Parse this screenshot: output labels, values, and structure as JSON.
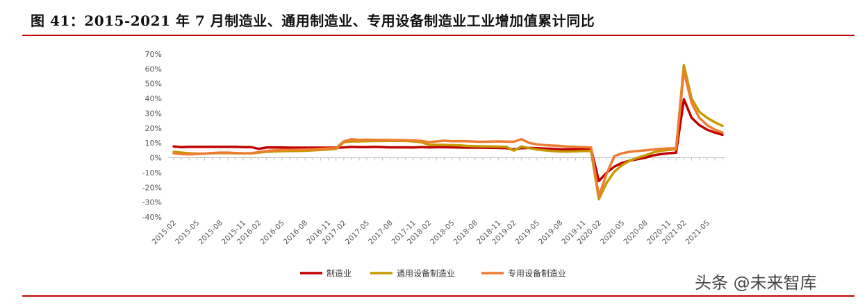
{
  "title": "图 41：2015-2021 年 7 月制造业、通用制造业、专用设备制造业工业增加值累计同比",
  "watermark": "头条 @未来智库",
  "chart_data": {
    "type": "line",
    "ylim": [
      -40,
      70
    ],
    "yticks": [
      "70%",
      "60%",
      "50%",
      "40%",
      "30%",
      "20%",
      "10%",
      "0%",
      "-10%",
      "-20%",
      "-30%",
      "-40%"
    ],
    "ytick_values": [
      70,
      60,
      50,
      40,
      30,
      20,
      10,
      0,
      -10,
      -20,
      -30,
      -40
    ],
    "x": [
      "2015-02",
      "2015-03",
      "2015-04",
      "2015-05",
      "2015-06",
      "2015-07",
      "2015-08",
      "2015-09",
      "2015-10",
      "2015-11",
      "2015-12",
      "2016-02",
      "2016-03",
      "2016-04",
      "2016-05",
      "2016-06",
      "2016-07",
      "2016-08",
      "2016-09",
      "2016-10",
      "2016-11",
      "2016-12",
      "2017-02",
      "2017-03",
      "2017-04",
      "2017-05",
      "2017-06",
      "2017-07",
      "2017-08",
      "2017-09",
      "2017-10",
      "2017-11",
      "2017-12",
      "2018-02",
      "2018-03",
      "2018-04",
      "2018-05",
      "2018-06",
      "2018-07",
      "2018-08",
      "2018-09",
      "2018-10",
      "2018-11",
      "2018-12",
      "2019-02",
      "2019-03",
      "2019-04",
      "2019-05",
      "2019-06",
      "2019-07",
      "2019-08",
      "2019-09",
      "2019-10",
      "2019-11",
      "2019-12",
      "2020-02",
      "2020-03",
      "2020-04",
      "2020-05",
      "2020-06",
      "2020-07",
      "2020-08",
      "2020-09",
      "2020-10",
      "2020-11",
      "2020-12",
      "2021-02",
      "2021-03",
      "2021-04",
      "2021-05",
      "2021-06",
      "2021-07"
    ],
    "x_tick_labels": [
      "2015-02",
      "2015-05",
      "2015-08",
      "2015-11",
      "2016-02",
      "2016-05",
      "2016-08",
      "2016-11",
      "2017-02",
      "2017-05",
      "2017-08",
      "2017-11",
      "2018-02",
      "2018-05",
      "2018-08",
      "2018-11",
      "2019-02",
      "2019-05",
      "2019-08",
      "2019-11",
      "2020-02",
      "2020-05",
      "2020-08",
      "2020-11",
      "2021-02",
      "2021-05"
    ],
    "series": [
      {
        "name": "制造业",
        "color": "#c00000",
        "values": [
          7.6,
          7.2,
          7.3,
          7.3,
          7.3,
          7.3,
          7.3,
          7.3,
          7.3,
          7.2,
          7.2,
          6.0,
          6.9,
          6.9,
          6.9,
          6.8,
          6.8,
          6.8,
          6.8,
          6.8,
          6.8,
          6.8,
          6.9,
          7.3,
          7.2,
          7.2,
          7.3,
          7.2,
          7.0,
          7.0,
          7.0,
          6.9,
          7.2,
          7.0,
          7.1,
          7.1,
          7.0,
          6.9,
          6.8,
          6.8,
          6.8,
          6.7,
          6.6,
          6.5,
          5.6,
          6.5,
          6.6,
          6.5,
          6.2,
          6.0,
          5.8,
          5.7,
          5.7,
          5.7,
          6.0,
          -15.7,
          -10.2,
          -6.0,
          -3.5,
          -2.0,
          -1.0,
          0.0,
          1.5,
          2.4,
          3.0,
          3.4,
          39.5,
          27.0,
          22.0,
          19.0,
          17.0,
          15.5
        ]
      },
      {
        "name": "通用设备制造业",
        "color": "#c59a00",
        "values": [
          4.0,
          3.5,
          3.0,
          2.8,
          2.8,
          3.0,
          3.2,
          3.1,
          3.0,
          2.9,
          2.9,
          3.5,
          4.0,
          4.2,
          4.4,
          4.5,
          4.6,
          4.7,
          5.0,
          5.3,
          5.6,
          5.9,
          10.5,
          11.0,
          11.0,
          11.2,
          11.3,
          11.3,
          11.4,
          11.4,
          11.3,
          11.0,
          10.5,
          8.8,
          8.7,
          8.7,
          8.5,
          8.3,
          8.0,
          7.8,
          7.7,
          7.6,
          7.5,
          7.4,
          4.8,
          7.6,
          6.5,
          5.5,
          5.0,
          4.5,
          4.2,
          4.2,
          4.3,
          4.5,
          4.6,
          -28.0,
          -17.0,
          -9.5,
          -5.0,
          -2.0,
          0.0,
          1.5,
          3.5,
          4.7,
          5.3,
          5.8,
          62.5,
          40.0,
          31.0,
          27.0,
          24.0,
          21.5
        ]
      },
      {
        "name": "专用设备制造业",
        "color": "#ed7d31",
        "values": [
          3.0,
          2.5,
          2.2,
          2.5,
          2.8,
          3.2,
          3.5,
          3.5,
          3.2,
          3.0,
          3.0,
          3.8,
          4.5,
          5.0,
          5.3,
          5.3,
          5.4,
          5.5,
          5.7,
          6.0,
          6.3,
          6.5,
          11.0,
          12.5,
          12.0,
          12.2,
          12.1,
          12.1,
          12.0,
          11.9,
          11.8,
          11.7,
          11.4,
          10.5,
          11.0,
          11.5,
          11.1,
          11.2,
          11.1,
          10.9,
          10.8,
          10.9,
          11.0,
          10.9,
          10.8,
          12.5,
          10.0,
          9.0,
          8.5,
          8.2,
          8.0,
          7.5,
          7.3,
          7.2,
          7.0,
          -26.0,
          -11.0,
          1.0,
          3.0,
          4.0,
          4.5,
          5.0,
          5.5,
          6.0,
          6.3,
          6.5,
          58.5,
          37.0,
          27.0,
          22.0,
          19.0,
          17.0
        ]
      }
    ]
  }
}
